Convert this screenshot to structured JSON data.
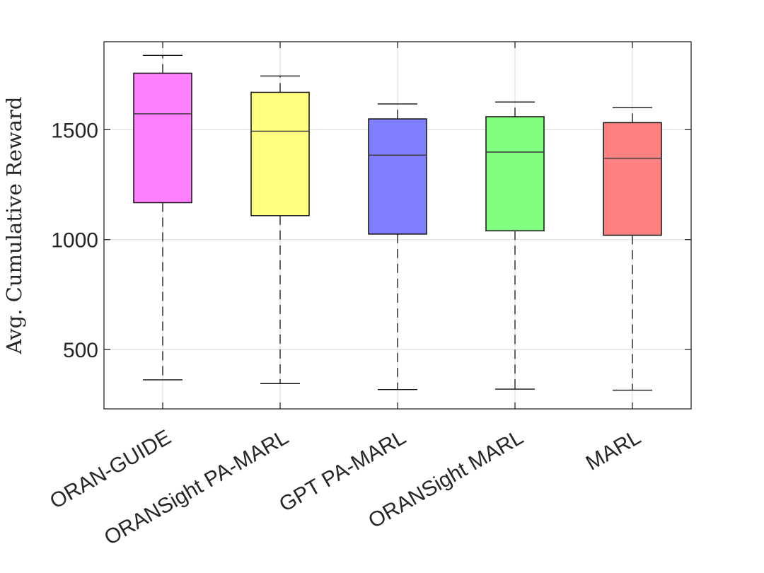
{
  "chart_data": {
    "type": "box",
    "ylabel": "Avg. Cumulative Reward",
    "ylim": [
      230,
      1900
    ],
    "yticks": [
      500,
      1000,
      1500
    ],
    "grid": true,
    "categories": [
      "ORAN-GUIDE",
      "ORANSight PA-MARL",
      "GPT PA-MARL",
      "ORANSight MARL",
      "MARL"
    ],
    "boxes": [
      {
        "min": 362,
        "q1": 1168,
        "median": 1572,
        "q3": 1757,
        "max": 1838,
        "color": "#ff80ff"
      },
      {
        "min": 345,
        "q1": 1109,
        "median": 1493,
        "q3": 1670,
        "max": 1744,
        "color": "#ffff80"
      },
      {
        "min": 318,
        "q1": 1025,
        "median": 1384,
        "q3": 1549,
        "max": 1617,
        "color": "#8080ff"
      },
      {
        "min": 320,
        "q1": 1040,
        "median": 1398,
        "q3": 1559,
        "max": 1626,
        "color": "#80ff80"
      },
      {
        "min": 315,
        "q1": 1020,
        "median": 1370,
        "q3": 1532,
        "max": 1601,
        "color": "#ff8080"
      }
    ]
  }
}
